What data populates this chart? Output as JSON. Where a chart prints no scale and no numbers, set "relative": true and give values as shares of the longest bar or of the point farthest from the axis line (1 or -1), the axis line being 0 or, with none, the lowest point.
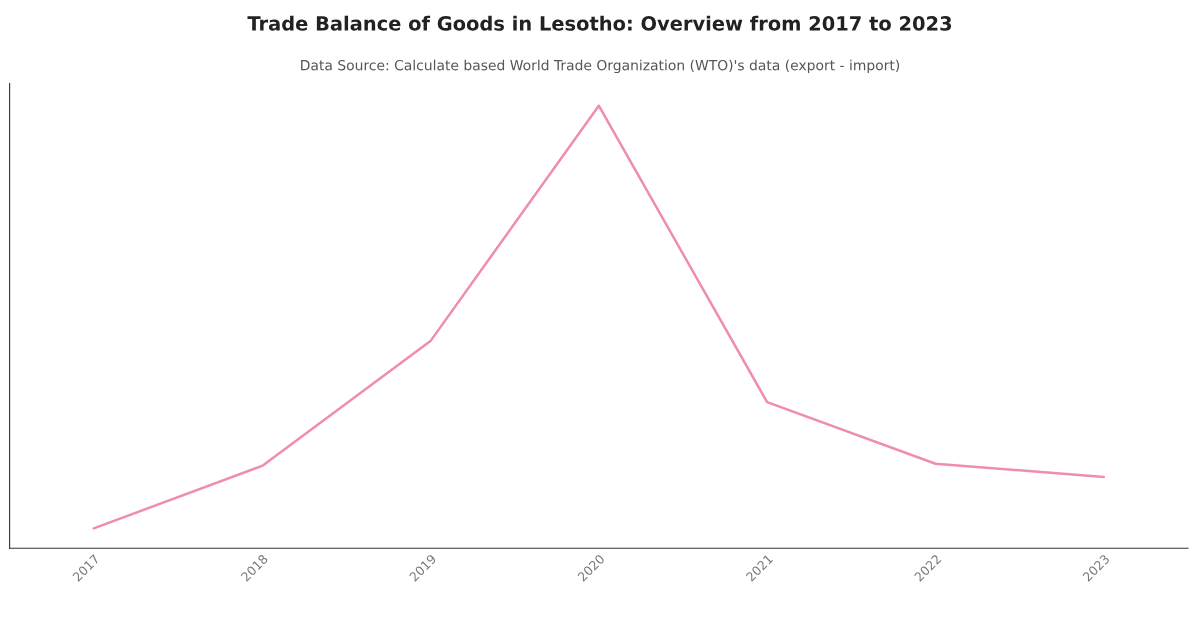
{
  "chart_data": {
    "type": "line",
    "title": "Trade Balance of Goods in Lesotho: Overview from 2017 to 2023",
    "subtitle": "Data Source: Calculate based World Trade Organization (WTO)'s data (export - import)",
    "relative": true,
    "categories": [
      "2017",
      "2018",
      "2019",
      "2020",
      "2021",
      "2022",
      "2023"
    ],
    "series": [
      {
        "color": "#f08cb4",
        "values": [
          0.045,
          0.186,
          0.468,
          1.0,
          0.33,
          0.191,
          0.161
        ]
      }
    ],
    "grid": false,
    "marker": "none",
    "line_style": "solid"
  }
}
